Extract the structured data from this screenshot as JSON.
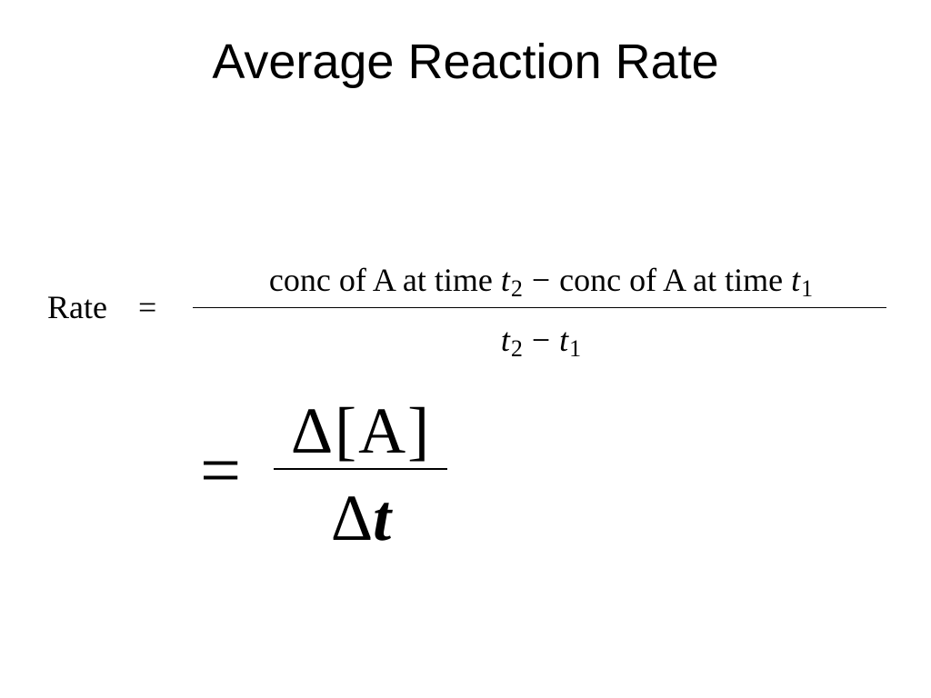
{
  "slide": {
    "title": "Average Reaction Rate"
  },
  "equation": {
    "lhs": "Rate",
    "equals": "=",
    "numerator": {
      "term1_text": "conc of A at time ",
      "term1_var": "t",
      "term1_sub": "2",
      "minus": "−",
      "term2_text": "conc of A at time ",
      "term2_var": "t",
      "term2_sub": "1"
    },
    "denominator": {
      "var1": "t",
      "sub1": "2",
      "minus": "−",
      "var2": "t",
      "sub2": "1"
    }
  },
  "delta_form": {
    "equals": "=",
    "numerator": "Δ[A]",
    "denominator_delta": "Δ",
    "denominator_var": "t"
  }
}
